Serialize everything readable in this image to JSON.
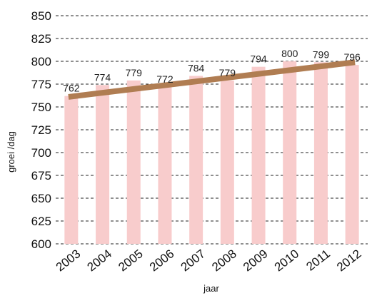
{
  "chart_data": {
    "type": "bar",
    "categories": [
      "2003",
      "2004",
      "2005",
      "2006",
      "2007",
      "2008",
      "2009",
      "2010",
      "2011",
      "2012"
    ],
    "values": [
      762,
      774,
      779,
      772,
      784,
      779,
      794,
      800,
      799,
      796
    ],
    "data_labels": [
      "762",
      "774",
      "779",
      "772",
      "784",
      "779",
      "794",
      "800",
      "799",
      "796"
    ],
    "trendline": {
      "type": "linear",
      "start": 761,
      "end": 799
    },
    "xlabel": "jaar",
    "ylabel": "groei /dag",
    "ylim": [
      600,
      850
    ],
    "yticks": [
      600,
      625,
      650,
      675,
      700,
      725,
      750,
      775,
      800,
      825,
      850
    ],
    "grid": "horizontal dashed",
    "colors": {
      "bar": "#f8cccc",
      "trendline": "#b07d52",
      "grid": "#222222"
    }
  }
}
